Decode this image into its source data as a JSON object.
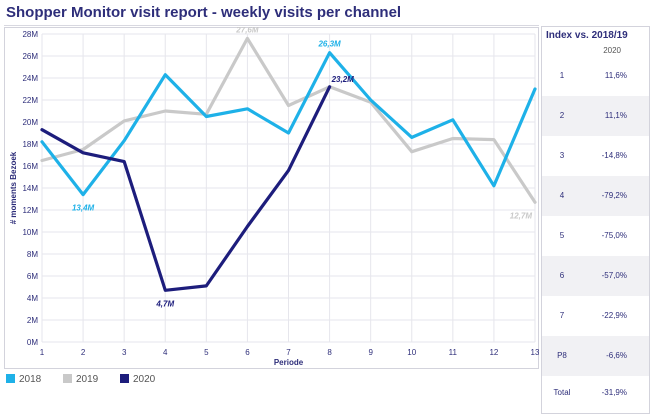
{
  "header": {
    "title": "Shopper Monitor visit report - weekly visits per channel"
  },
  "colors": {
    "s2018": "#1eb1e8",
    "s2019": "#c9c9c9",
    "s2020": "#1d1d7c",
    "grid": "#e6e6ec",
    "text": "#2e2e7a"
  },
  "chart_data": {
    "type": "line",
    "title": "",
    "xlabel": "Periode",
    "ylabel": "# moments Bezoek",
    "x": [
      1,
      2,
      3,
      4,
      5,
      6,
      7,
      8,
      9,
      10,
      11,
      12,
      13
    ],
    "ylim": [
      0,
      28
    ],
    "yticks": [
      0,
      2,
      4,
      6,
      8,
      10,
      12,
      14,
      16,
      18,
      20,
      22,
      24,
      26,
      28
    ],
    "ytick_labels": [
      "0M",
      "2M",
      "4M",
      "6M",
      "8M",
      "10M",
      "12M",
      "14M",
      "16M",
      "18M",
      "20M",
      "22M",
      "24M",
      "26M",
      "28M"
    ],
    "grid": true,
    "legend_position": "bottom-left",
    "series": [
      {
        "name": "2018",
        "color": "#1eb1e8",
        "values": [
          18.2,
          13.4,
          18.3,
          24.3,
          20.5,
          21.2,
          19.0,
          26.3,
          22.0,
          18.6,
          20.2,
          14.2,
          23.0
        ]
      },
      {
        "name": "2019",
        "color": "#c9c9c9",
        "values": [
          16.5,
          17.5,
          20.1,
          21.0,
          20.7,
          27.6,
          21.5,
          23.2,
          21.8,
          17.3,
          18.5,
          18.4,
          12.7
        ]
      },
      {
        "name": "2020",
        "color": "#1d1d7c",
        "values": [
          19.3,
          17.2,
          16.4,
          4.7,
          5.1,
          10.5,
          15.6,
          23.2,
          null,
          null,
          null,
          null,
          null
        ]
      }
    ],
    "annotations": [
      {
        "text": "13,4M",
        "series": "2018",
        "x": 2,
        "y": 13.4,
        "place": "below"
      },
      {
        "text": "26,3M",
        "series": "2018",
        "x": 8,
        "y": 26.3,
        "place": "above"
      },
      {
        "text": "27,6M",
        "series": "2019",
        "x": 6,
        "y": 27.6,
        "place": "above"
      },
      {
        "text": "12,7M",
        "series": "2019",
        "x": 13,
        "y": 12.7,
        "place": "below-left"
      },
      {
        "text": "4,7M",
        "series": "2020",
        "x": 4,
        "y": 4.7,
        "place": "below"
      },
      {
        "text": "23,2M",
        "series": "2020",
        "x": 8,
        "y": 23.2,
        "place": "right"
      }
    ]
  },
  "legend": {
    "items": [
      "2018",
      "2019",
      "2020"
    ]
  },
  "side_panel": {
    "title": "Index vs. 2018/19",
    "year": "2020",
    "rows": [
      {
        "label": "1",
        "value": "11,6%"
      },
      {
        "label": "2",
        "value": "11,1%"
      },
      {
        "label": "3",
        "value": "-14,8%"
      },
      {
        "label": "4",
        "value": "-79,2%"
      },
      {
        "label": "5",
        "value": "-75,0%"
      },
      {
        "label": "6",
        "value": "-57,0%"
      },
      {
        "label": "7",
        "value": "-22,9%"
      },
      {
        "label": "P8",
        "value": "-6,6%"
      },
      {
        "label": "Total",
        "value": "-31,9%"
      }
    ]
  }
}
